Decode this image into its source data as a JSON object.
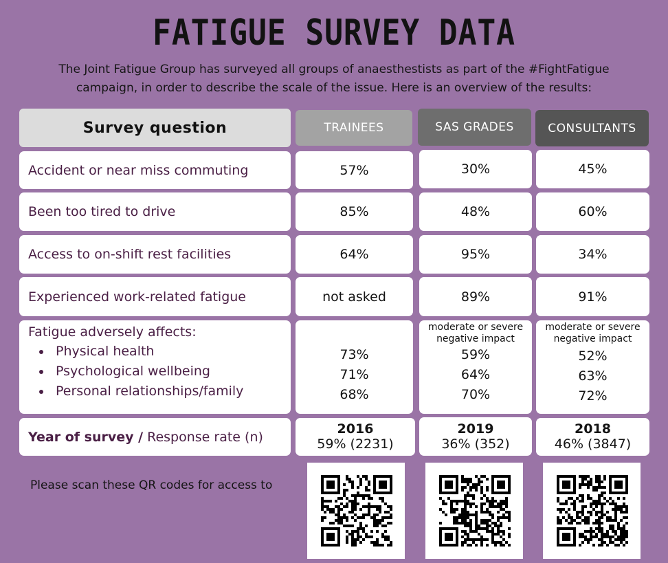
{
  "title": "FATIGUE SURVEY DATA",
  "intro": {
    "line1": "The Joint Fatigue Group has surveyed all groups of anaesthestists as part of the #FightFatigue",
    "line2": "campaign, in order to describe the scale of the issue.  Here is an overview of the results:"
  },
  "table": {
    "question_header": "Survey question",
    "columns": [
      "TRAINEES",
      "SAS GRADES",
      "CONSULTANTS"
    ],
    "column_colors": [
      "#a3a3a3",
      "#6e6e6e",
      "#555555"
    ],
    "rows": [
      {
        "question": "Accident or near miss commuting",
        "values": [
          "57%",
          "30%",
          "45%"
        ]
      },
      {
        "question": "Been too tired to drive",
        "values": [
          "85%",
          "48%",
          "60%"
        ]
      },
      {
        "question": "Access to on-shift rest facilities",
        "values": [
          "64%",
          "95%",
          "34%"
        ]
      },
      {
        "question": "Experienced work-related fatigue",
        "values": [
          "not asked",
          "89%",
          "91%"
        ]
      }
    ],
    "affects": {
      "question": "Fatigue adversely affects:",
      "items": [
        "Physical health",
        "Psychological wellbeing",
        "Personal relationships/family"
      ],
      "sas_note_1": "moderate or severe",
      "sas_note_2": "negative impact",
      "consultants_note_1": "moderate or severe",
      "consultants_note_2": "negative impact",
      "trainees": [
        "73%",
        "71%",
        "68%"
      ],
      "sas": [
        "59%",
        "64%",
        "70%"
      ],
      "consultants": [
        "52%",
        "63%",
        "72%"
      ]
    },
    "survey_row": {
      "label_bold": "Year of survey /",
      "label_rest": " Response rate (n)",
      "trainees_year": "2016",
      "trainees_rate": "59% (2231)",
      "sas_year": "2019",
      "sas_rate": "36% (352)",
      "consultants_year": "2018",
      "consultants_rate": "46% (3847)"
    }
  },
  "scan_text": "Please scan these QR codes for access to"
}
